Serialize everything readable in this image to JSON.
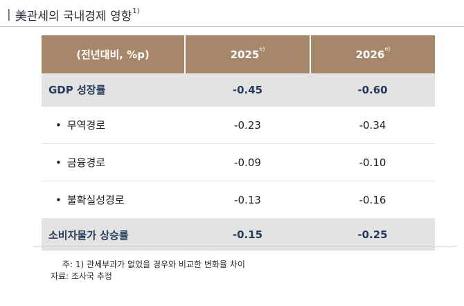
{
  "title": {
    "text": "美관세의 국내경제 영향",
    "footnote_mark": "1)"
  },
  "table": {
    "headers": [
      {
        "label": "(전년대비, %p)",
        "sup": ""
      },
      {
        "label": "2025",
        "sup": "e)"
      },
      {
        "label": "2026",
        "sup": "e)"
      }
    ],
    "rows": [
      {
        "label": "GDP 성장률",
        "v2025": "-0.45",
        "v2026": "-0.60",
        "emphasis": true
      },
      {
        "label": "무역경로",
        "v2025": "-0.23",
        "v2026": "-0.34",
        "emphasis": false
      },
      {
        "label": "금융경로",
        "v2025": "-0.09",
        "v2026": "-0.10",
        "emphasis": false
      },
      {
        "label": "불확실성경로",
        "v2025": "-0.13",
        "v2026": "-0.16",
        "emphasis": false
      },
      {
        "label": "소비자물가 상승률",
        "v2025": "-0.15",
        "v2026": "-0.25",
        "emphasis": true
      }
    ]
  },
  "notes": {
    "note1": "주: 1) 관세부과가 없었을 경우와 비교한 변화율 차이",
    "source": "자료: 조사국 추정"
  },
  "colors": {
    "header_bg": "#a7876a",
    "highlight_row_bg": "#e3e3e3",
    "highlight_text": "#263a5a"
  }
}
